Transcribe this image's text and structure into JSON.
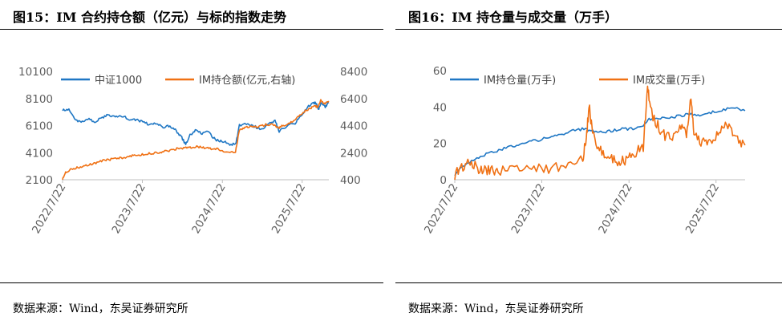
{
  "panels": [
    {
      "title": "图15：IM 合约持仓额（亿元）与标的指数走势",
      "source": "数据来源：Wind，东吴证券研究所",
      "legend": [
        {
          "label": "中证1000",
          "color": "#1f77c4"
        },
        {
          "label": "IM持仓额(亿元,右轴)",
          "color": "#f07114"
        }
      ]
    },
    {
      "title": "图16：IM 持仓量与成交量（万手）",
      "source": "数据来源：Wind，东吴证券研究所",
      "legend": [
        {
          "label": "IM持仓量(万手)",
          "color": "#1f77c4"
        },
        {
          "label": "IM成交量(万手)",
          "color": "#f07114"
        }
      ]
    }
  ],
  "chart_data": [
    {
      "type": "line",
      "xlim": [
        "2022-07-22",
        "2025-11-21"
      ],
      "x_ticks": [
        "2022/7/22",
        "2023/7/22",
        "2024/7/22",
        "2025/7/22"
      ],
      "ylim": [
        2100,
        10100
      ],
      "y_ticks": [
        "10100",
        "8100",
        "6100",
        "4100",
        "2100"
      ],
      "y2lim": [
        400,
        8400
      ],
      "y2_ticks": [
        "8400",
        "6400",
        "4400",
        "2400",
        "400"
      ],
      "grid": false,
      "legend_position": "top",
      "series": [
        {
          "name": "中证1000",
          "axis": "left",
          "color": "#1f77c4",
          "points": [
            [
              "2022-07-22",
              7300
            ],
            [
              "2022-08-20",
              7250
            ],
            [
              "2022-09-20",
              6500
            ],
            [
              "2022-10-20",
              6400
            ],
            [
              "2022-11-20",
              6550
            ],
            [
              "2022-12-20",
              6400
            ],
            [
              "2023-01-20",
              6700
            ],
            [
              "2023-02-20",
              6900
            ],
            [
              "2023-03-20",
              6750
            ],
            [
              "2023-04-20",
              6800
            ],
            [
              "2023-05-20",
              6600
            ],
            [
              "2023-06-20",
              6500
            ],
            [
              "2023-07-20",
              6450
            ],
            [
              "2023-08-20",
              6200
            ],
            [
              "2023-09-20",
              6250
            ],
            [
              "2023-10-20",
              6000
            ],
            [
              "2023-11-20",
              6050
            ],
            [
              "2023-12-20",
              5800
            ],
            [
              "2024-01-15",
              5300
            ],
            [
              "2024-02-05",
              4700
            ],
            [
              "2024-02-25",
              5400
            ],
            [
              "2024-03-20",
              5750
            ],
            [
              "2024-04-20",
              5550
            ],
            [
              "2024-05-20",
              5600
            ],
            [
              "2024-06-20",
              5050
            ],
            [
              "2024-07-20",
              4950
            ],
            [
              "2024-08-20",
              4750
            ],
            [
              "2024-09-20",
              4700
            ],
            [
              "2024-10-08",
              6100
            ],
            [
              "2024-11-15",
              6250
            ],
            [
              "2024-12-20",
              6000
            ],
            [
              "2025-01-20",
              5850
            ],
            [
              "2025-02-20",
              6350
            ],
            [
              "2025-03-20",
              6450
            ],
            [
              "2025-04-08",
              5700
            ],
            [
              "2025-05-20",
              6150
            ],
            [
              "2025-06-20",
              6300
            ],
            [
              "2025-07-20",
              6900
            ],
            [
              "2025-08-20",
              7500
            ],
            [
              "2025-09-15",
              7800
            ],
            [
              "2025-09-25",
              7700
            ],
            [
              "2025-10-05",
              7300
            ],
            [
              "2025-10-15",
              7800
            ],
            [
              "2025-11-05",
              7500
            ],
            [
              "2025-11-21",
              7800
            ]
          ]
        },
        {
          "name": "IM持仓额(亿元,右轴)",
          "axis": "right",
          "color": "#f07114",
          "points": [
            [
              "2022-07-22",
              420
            ],
            [
              "2022-08-05",
              950
            ],
            [
              "2022-09-01",
              1200
            ],
            [
              "2022-10-01",
              1300
            ],
            [
              "2022-11-01",
              1450
            ],
            [
              "2022-12-01",
              1550
            ],
            [
              "2023-01-01",
              1700
            ],
            [
              "2023-02-01",
              1850
            ],
            [
              "2023-03-01",
              1900
            ],
            [
              "2023-04-01",
              2000
            ],
            [
              "2023-05-01",
              2050
            ],
            [
              "2023-06-01",
              2150
            ],
            [
              "2023-07-01",
              2200
            ],
            [
              "2023-08-01",
              2300
            ],
            [
              "2023-09-01",
              2350
            ],
            [
              "2023-10-01",
              2400
            ],
            [
              "2023-11-01",
              2500
            ],
            [
              "2023-12-01",
              2600
            ],
            [
              "2024-01-01",
              2700
            ],
            [
              "2024-02-01",
              2750
            ],
            [
              "2024-03-01",
              2800
            ],
            [
              "2024-04-01",
              2850
            ],
            [
              "2024-05-01",
              2750
            ],
            [
              "2024-06-01",
              2700
            ],
            [
              "2024-07-01",
              2650
            ],
            [
              "2024-08-01",
              2500
            ],
            [
              "2024-09-20",
              2450
            ],
            [
              "2024-10-08",
              4100
            ],
            [
              "2024-11-01",
              4250
            ],
            [
              "2024-12-01",
              4350
            ],
            [
              "2025-01-01",
              4300
            ],
            [
              "2025-02-01",
              4450
            ],
            [
              "2025-03-01",
              4500
            ],
            [
              "2025-04-08",
              4250
            ],
            [
              "2025-05-01",
              4450
            ],
            [
              "2025-06-01",
              4650
            ],
            [
              "2025-07-01",
              5000
            ],
            [
              "2025-08-01",
              5450
            ],
            [
              "2025-09-01",
              5700
            ],
            [
              "2025-09-20",
              5850
            ],
            [
              "2025-10-01",
              5750
            ],
            [
              "2025-10-15",
              6250
            ],
            [
              "2025-11-01",
              6050
            ],
            [
              "2025-11-21",
              6200
            ]
          ]
        }
      ]
    },
    {
      "type": "line",
      "xlim": [
        "2022-07-22",
        "2025-11-21"
      ],
      "x_ticks": [
        "2022/7/22",
        "2023/7/22",
        "2024/7/22",
        "2025/7/22"
      ],
      "ylim": [
        0,
        60
      ],
      "y_ticks": [
        "60",
        "40",
        "20",
        "0"
      ],
      "grid": false,
      "legend_position": "top",
      "series": [
        {
          "name": "IM持仓量(万手)",
          "color": "#1f77c4",
          "points": [
            [
              "2022-07-22",
              3
            ],
            [
              "2022-09-01",
              8
            ],
            [
              "2022-10-15",
              11
            ],
            [
              "2022-12-01",
              14
            ],
            [
              "2023-01-15",
              16
            ],
            [
              "2023-03-01",
              18
            ],
            [
              "2023-04-15",
              19
            ],
            [
              "2023-06-01",
              21
            ],
            [
              "2023-07-15",
              22
            ],
            [
              "2023-09-01",
              24
            ],
            [
              "2023-10-15",
              25
            ],
            [
              "2023-12-01",
              27
            ],
            [
              "2024-01-15",
              28
            ],
            [
              "2024-02-20",
              27
            ],
            [
              "2024-04-01",
              26
            ],
            [
              "2024-05-15",
              27
            ],
            [
              "2024-07-01",
              28
            ],
            [
              "2024-08-15",
              28
            ],
            [
              "2024-09-20",
              29
            ],
            [
              "2024-10-08",
              33
            ],
            [
              "2024-11-15",
              34
            ],
            [
              "2025-01-01",
              34
            ],
            [
              "2025-02-15",
              35
            ],
            [
              "2025-04-01",
              36
            ],
            [
              "2025-05-15",
              35
            ],
            [
              "2025-07-01",
              37
            ],
            [
              "2025-08-15",
              38
            ],
            [
              "2025-10-01",
              40
            ],
            [
              "2025-11-21",
              38
            ]
          ]
        },
        {
          "name": "IM成交量(万手)",
          "color": "#f07114",
          "points": [
            [
              "2022-07-22",
              3
            ],
            [
              "2022-08-20",
              6
            ],
            [
              "2022-09-20",
              9
            ],
            [
              "2022-10-20",
              7
            ],
            [
              "2022-11-20",
              5
            ],
            [
              "2022-12-20",
              6
            ],
            [
              "2023-01-20",
              5
            ],
            [
              "2023-03-20",
              6
            ],
            [
              "2023-05-20",
              7
            ],
            [
              "2023-07-20",
              6
            ],
            [
              "2023-09-20",
              7
            ],
            [
              "2023-11-20",
              8
            ],
            [
              "2024-01-10",
              12
            ],
            [
              "2024-01-25",
              22
            ],
            [
              "2024-02-05",
              41
            ],
            [
              "2024-02-20",
              25
            ],
            [
              "2024-03-20",
              17
            ],
            [
              "2024-04-20",
              12
            ],
            [
              "2024-05-20",
              11
            ],
            [
              "2024-06-20",
              10
            ],
            [
              "2024-07-20",
              12
            ],
            [
              "2024-08-20",
              15
            ],
            [
              "2024-09-20",
              18
            ],
            [
              "2024-10-08",
              51
            ],
            [
              "2024-10-20",
              38
            ],
            [
              "2024-11-20",
              30
            ],
            [
              "2024-12-20",
              24
            ],
            [
              "2025-01-20",
              22
            ],
            [
              "2025-02-20",
              31
            ],
            [
              "2025-03-20",
              26
            ],
            [
              "2025-04-08",
              45
            ],
            [
              "2025-04-20",
              26
            ],
            [
              "2025-05-20",
              20
            ],
            [
              "2025-06-20",
              20
            ],
            [
              "2025-07-20",
              24
            ],
            [
              "2025-08-20",
              30
            ],
            [
              "2025-09-20",
              28
            ],
            [
              "2025-10-20",
              22
            ],
            [
              "2025-11-21",
              19
            ]
          ]
        }
      ]
    }
  ]
}
